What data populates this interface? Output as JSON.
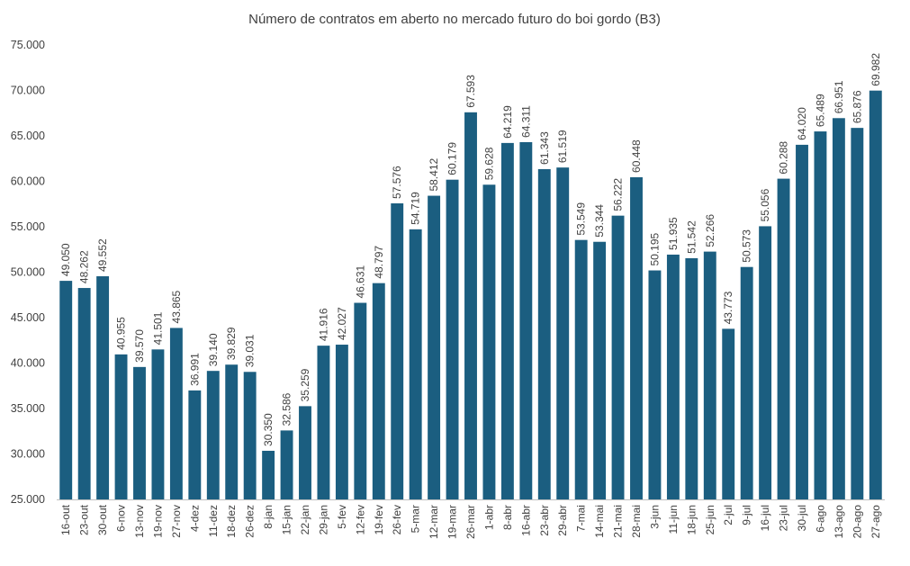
{
  "chart_data": {
    "type": "bar",
    "title": "Número de contratos em aberto no mercado futuro do boi gordo (B3)",
    "xlabel": "",
    "ylabel": "",
    "ylim": [
      25000,
      75000
    ],
    "yticks": [
      25000,
      30000,
      35000,
      40000,
      45000,
      50000,
      55000,
      60000,
      65000,
      70000,
      75000
    ],
    "ytick_labels": [
      "25.000",
      "30.000",
      "35.000",
      "40.000",
      "45.000",
      "50.000",
      "55.000",
      "60.000",
      "65.000",
      "70.000",
      "75.000"
    ],
    "grid": false,
    "legend": "none",
    "bar_color": "#1B5E80",
    "categories": [
      "16-out",
      "23-out",
      "30-out",
      "6-nov",
      "13-nov",
      "19-nov",
      "27-nov",
      "4-dez",
      "11-dez",
      "18-dez",
      "26-dez",
      "8-jan",
      "15-jan",
      "22-jan",
      "29-jan",
      "5-fev",
      "12-fev",
      "19-fev",
      "26-fev",
      "5-mar",
      "12-mar",
      "19-mar",
      "26-mar",
      "1-abr",
      "8-abr",
      "16-abr",
      "23-abr",
      "29-abr",
      "7-mai",
      "14-mai",
      "21-mai",
      "28-mai",
      "3-jun",
      "11-jun",
      "18-jun",
      "25-jun",
      "2-jul",
      "9-jul",
      "16-jul",
      "23-jul",
      "30-jul",
      "6-ago",
      "13-ago",
      "20-ago",
      "27-ago"
    ],
    "values": [
      49050,
      48262,
      49552,
      40955,
      39570,
      41501,
      43865,
      36991,
      39140,
      39829,
      39031,
      30350,
      32586,
      35259,
      41916,
      42027,
      46631,
      48797,
      57576,
      54719,
      58412,
      60179,
      67593,
      59628,
      64219,
      64311,
      61343,
      61519,
      53549,
      53344,
      56222,
      60448,
      50195,
      51935,
      51542,
      52266,
      43773,
      50573,
      55056,
      60288,
      64020,
      65489,
      66951,
      65876,
      69982
    ],
    "data_labels": [
      "49.050",
      "48.262",
      "49.552",
      "40.955",
      "39.570",
      "41.501",
      "43.865",
      "36.991",
      "39.140",
      "39.829",
      "39.031",
      "30.350",
      "32.586",
      "35.259",
      "41.916",
      "42.027",
      "46.631",
      "48.797",
      "57.576",
      "54.719",
      "58.412",
      "60.179",
      "67.593",
      "59.628",
      "64.219",
      "64.311",
      "61.343",
      "61.519",
      "53.549",
      "53.344",
      "56.222",
      "60.448",
      "50.195",
      "51.935",
      "51.542",
      "52.266",
      "43.773",
      "50.573",
      "55.056",
      "60.288",
      "64.020",
      "65.489",
      "66.951",
      "65.876",
      "69.982"
    ]
  }
}
